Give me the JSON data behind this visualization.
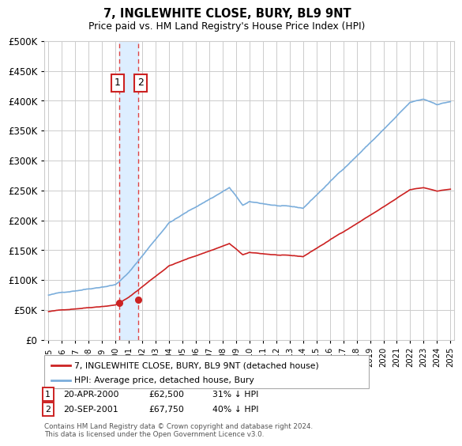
{
  "title": "7, INGLEWHITE CLOSE, BURY, BL9 9NT",
  "subtitle": "Price paid vs. HM Land Registry's House Price Index (HPI)",
  "legend_line1": "7, INGLEWHITE CLOSE, BURY, BL9 9NT (detached house)",
  "legend_line2": "HPI: Average price, detached house, Bury",
  "footer": "Contains HM Land Registry data © Crown copyright and database right 2024.\nThis data is licensed under the Open Government Licence v3.0.",
  "annotation1_date": "20-APR-2000",
  "annotation1_price": "£62,500",
  "annotation1_hpi": "31% ↓ HPI",
  "annotation2_date": "20-SEP-2001",
  "annotation2_price": "£67,750",
  "annotation2_hpi": "40% ↓ HPI",
  "sale1_x": 2000.3,
  "sale1_y": 62500,
  "sale2_x": 2001.72,
  "sale2_y": 67750,
  "hpi_color": "#7aaddb",
  "sale_color": "#cc2222",
  "vline_color": "#dd4444",
  "shade_color": "#ddeeff",
  "box_border_color": "#cc2222",
  "ylim": [
    0,
    500000
  ],
  "xlim_left": 1994.7,
  "xlim_right": 2025.3,
  "background_color": "#ffffff",
  "grid_color": "#cccccc"
}
